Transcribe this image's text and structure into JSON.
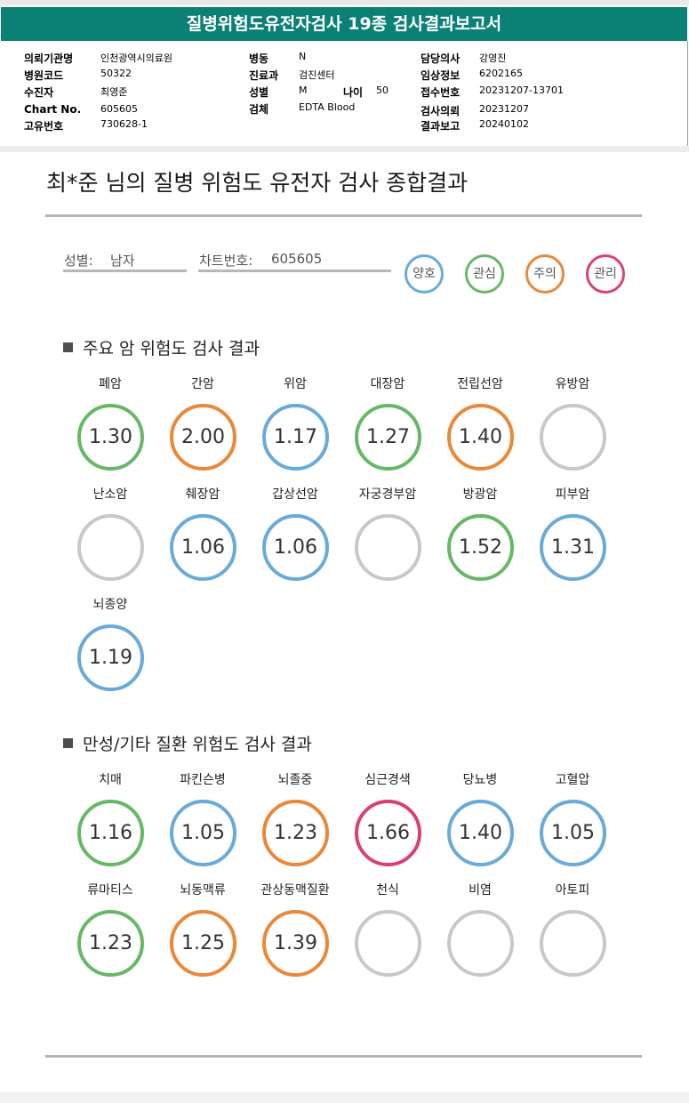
{
  "report_title": "질병위험도유전자검사 19종 검사결과보고서",
  "header": {
    "institution_label": "의뢰기관명",
    "institution": "인천광역시의료원",
    "hospital_code_label": "병원코드",
    "hospital_code": "50322",
    "recipient_label": "수진자",
    "recipient": "최영준",
    "chart_label": "Chart No.",
    "chart_no": "605605",
    "unique_label": "고유번호",
    "unique_no": "730628-1",
    "ward_label": "병동",
    "ward": "N",
    "department_label": "진료과",
    "department": "검진센터",
    "sex_label": "성별",
    "sex": "M",
    "age_label": "나이",
    "age": "50",
    "specimen_label": "검체",
    "specimen": "EDTA Blood",
    "doctor_label": "담당의사",
    "doctor": "강영진",
    "clinical_label": "임상정보",
    "clinical": "6202165",
    "receipt_label": "접수번호",
    "receipt_no": "20231207-13701",
    "request_label": "검사의뢰",
    "request_date": "20231207",
    "report_label": "결과보고",
    "report_date": "20240102"
  },
  "main_title": "최*준 님의 질병 위험도 유전자 검사 종합결과",
  "patient": {
    "sex_label": "성별:",
    "sex_value": "남자",
    "chart_label": "차트번호:",
    "chart_value": "605605"
  },
  "legend": [
    {
      "label": "양호",
      "color": "#6aaad9"
    },
    {
      "label": "관심",
      "color": "#66b866"
    },
    {
      "label": "주의",
      "color": "#ea883a"
    },
    {
      "label": "관리",
      "color": "#d9407a"
    }
  ],
  "cancer": {
    "title": "주요 암 위험도 검사 결과",
    "items": [
      {
        "name": "폐암",
        "value": "1.30",
        "level": "green"
      },
      {
        "name": "간암",
        "value": "2.00",
        "level": "orange"
      },
      {
        "name": "위암",
        "value": "1.17",
        "level": "blue"
      },
      {
        "name": "대장암",
        "value": "1.27",
        "level": "green"
      },
      {
        "name": "전립선암",
        "value": "1.40",
        "level": "orange"
      },
      {
        "name": "유방암",
        "value": "",
        "level": "none"
      },
      {
        "name": "난소암",
        "value": "",
        "level": "none"
      },
      {
        "name": "췌장암",
        "value": "1.06",
        "level": "blue"
      },
      {
        "name": "갑상선암",
        "value": "1.06",
        "level": "blue"
      },
      {
        "name": "자궁경부암",
        "value": "",
        "level": "none"
      },
      {
        "name": "방광암",
        "value": "1.52",
        "level": "green"
      },
      {
        "name": "피부암",
        "value": "1.31",
        "level": "blue"
      },
      {
        "name": "뇌종양",
        "value": "1.19",
        "level": "blue"
      }
    ]
  },
  "chronic": {
    "title": "만성/기타 질환 위험도 검사 결과",
    "items": [
      {
        "name": "치매",
        "value": "1.16",
        "level": "green"
      },
      {
        "name": "파킨슨병",
        "value": "1.05",
        "level": "blue"
      },
      {
        "name": "뇌졸중",
        "value": "1.23",
        "level": "orange"
      },
      {
        "name": "심근경색",
        "value": "1.66",
        "level": "red"
      },
      {
        "name": "당뇨병",
        "value": "1.40",
        "level": "blue"
      },
      {
        "name": "고혈압",
        "value": "1.05",
        "level": "blue"
      },
      {
        "name": "류마티스",
        "value": "1.23",
        "level": "green"
      },
      {
        "name": "뇌동맥류",
        "value": "1.25",
        "level": "orange"
      },
      {
        "name": "관상동맥질환",
        "value": "1.39",
        "level": "orange"
      },
      {
        "name": "천식",
        "value": "",
        "level": "none"
      },
      {
        "name": "비염",
        "value": "",
        "level": "none"
      },
      {
        "name": "아토피",
        "value": "",
        "level": "none"
      }
    ]
  }
}
